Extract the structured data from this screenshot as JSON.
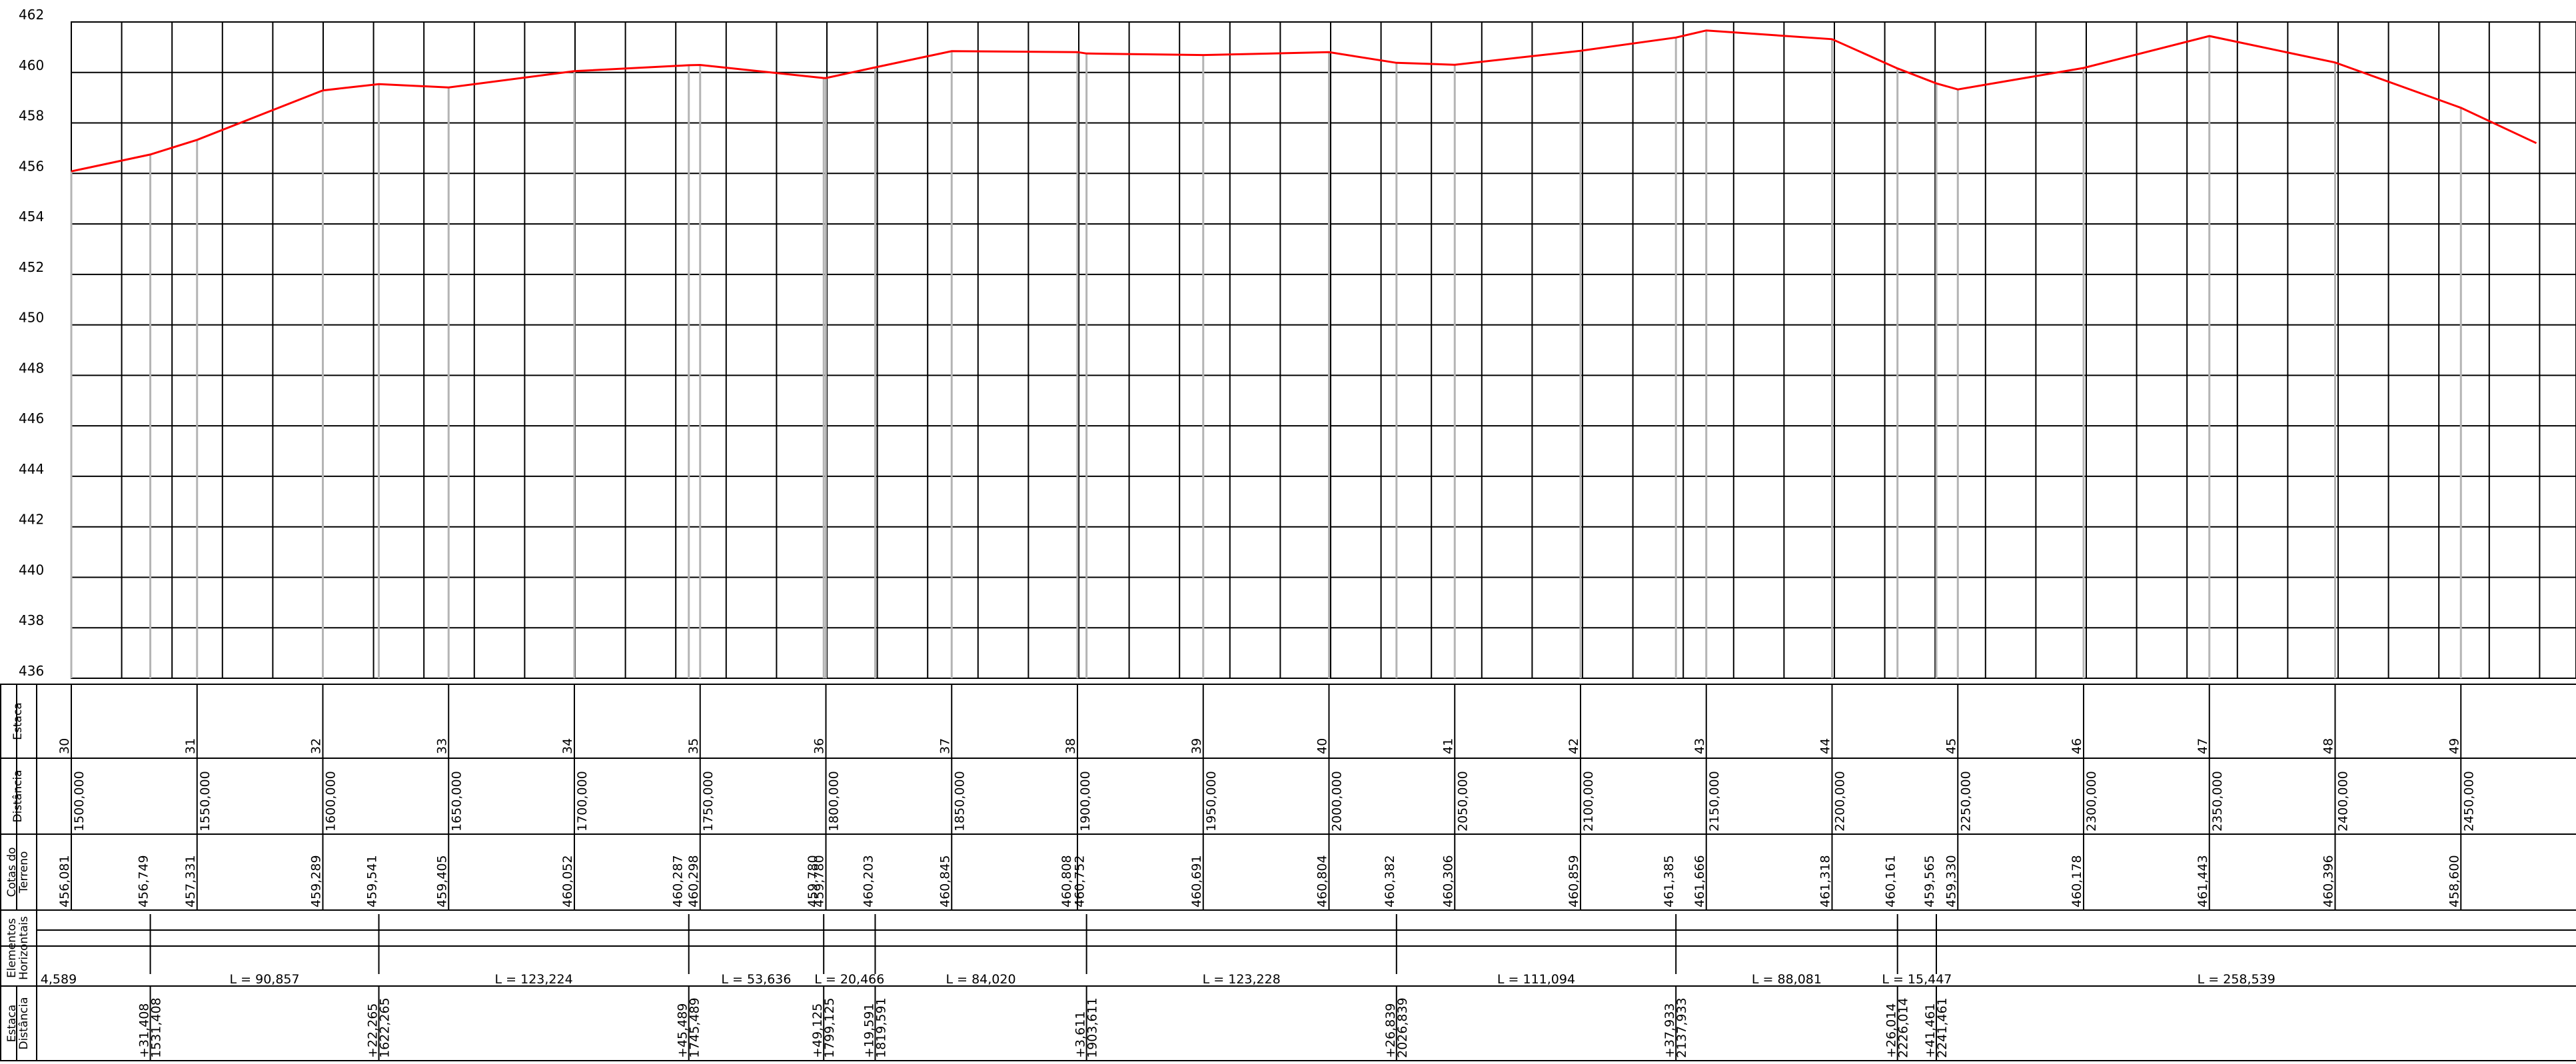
{
  "chart_data": {
    "type": "line",
    "y_ticks": [
      "462",
      "460",
      "458",
      "456",
      "454",
      "452",
      "450",
      "448",
      "446",
      "444",
      "442",
      "440",
      "438",
      "436"
    ],
    "ylim": [
      436,
      462
    ],
    "xlim": [
      1480,
      2480
    ],
    "grid": true,
    "series": [
      {
        "color": "#ff0000",
        "points": [
          [
            1500,
            456.081
          ],
          [
            1531.408,
            456.749
          ],
          [
            1550,
            457.331
          ],
          [
            1600,
            459.289
          ],
          [
            1622.265,
            459.541
          ],
          [
            1650,
            459.405
          ],
          [
            1700,
            460.052
          ],
          [
            1745.489,
            460.287
          ],
          [
            1750,
            460.298
          ],
          [
            1799.125,
            459.78
          ],
          [
            1800,
            459.78
          ],
          [
            1819.591,
            460.203
          ],
          [
            1850,
            460.845
          ],
          [
            1900,
            460.808
          ],
          [
            1903.611,
            460.752
          ],
          [
            1950,
            460.691
          ],
          [
            2000,
            460.804
          ],
          [
            2026.839,
            460.382
          ],
          [
            2050,
            460.306
          ],
          [
            2100,
            460.859
          ],
          [
            2137.933,
            461.385
          ],
          [
            2150,
            461.666
          ],
          [
            2200,
            461.318
          ],
          [
            2226.014,
            460.161
          ],
          [
            2241.461,
            459.565
          ],
          [
            2250,
            459.33
          ],
          [
            2300,
            460.178
          ],
          [
            2350,
            461.443
          ],
          [
            2400,
            460.396
          ],
          [
            2450,
            458.6
          ],
          [
            2480,
            457.2
          ]
        ]
      }
    ],
    "row_titles": [
      {
        "lines": [
          "Estaca"
        ]
      },
      {
        "lines": [
          "Distância"
        ]
      },
      {
        "lines": [
          "Cotas do",
          "Terreno"
        ]
      },
      {
        "lines": [
          "Elementos",
          "Horizontais"
        ]
      },
      {
        "lines": [
          "Estaca",
          "Distância"
        ]
      }
    ],
    "stations": [
      {
        "estaca": "30",
        "distancia": "1500,000"
      },
      {
        "estaca": "31",
        "distancia": "1550,000"
      },
      {
        "estaca": "32",
        "distancia": "1600,000"
      },
      {
        "estaca": "33",
        "distancia": "1650,000"
      },
      {
        "estaca": "34",
        "distancia": "1700,000"
      },
      {
        "estaca": "35",
        "distancia": "1750,000"
      },
      {
        "estaca": "36",
        "distancia": "1800,000"
      },
      {
        "estaca": "37",
        "distancia": "1850,000"
      },
      {
        "estaca": "38",
        "distancia": "1900,000"
      },
      {
        "estaca": "39",
        "distancia": "1950,000"
      },
      {
        "estaca": "40",
        "distancia": "2000,000"
      },
      {
        "estaca": "41",
        "distancia": "2050,000"
      },
      {
        "estaca": "42",
        "distancia": "2100,000"
      },
      {
        "estaca": "43",
        "distancia": "2150,000"
      },
      {
        "estaca": "44",
        "distancia": "2200,000"
      },
      {
        "estaca": "45",
        "distancia": "2250,000"
      },
      {
        "estaca": "46",
        "distancia": "2300,000"
      },
      {
        "estaca": "47",
        "distancia": "2350,000"
      },
      {
        "estaca": "48",
        "distancia": "2400,000"
      },
      {
        "estaca": "49",
        "distancia": "2450,000"
      }
    ],
    "cotas_terreno": [
      {
        "d": 1500,
        "text": "456,081"
      },
      {
        "d": 1531.408,
        "text": "456,749"
      },
      {
        "d": 1550,
        "text": "457,331"
      },
      {
        "d": 1600,
        "text": "459,289"
      },
      {
        "d": 1622.265,
        "text": "459,541"
      },
      {
        "d": 1650,
        "text": "459,405"
      },
      {
        "d": 1700,
        "text": "460,052"
      },
      {
        "d": 1745.489,
        "text": "460,287"
      },
      {
        "d": 1750,
        "text": "460,298"
      },
      {
        "d": 1799.125,
        "text": "459,780"
      },
      {
        "d": 1800,
        "text": "459,780"
      },
      {
        "d": 1819.591,
        "text": "460,203"
      },
      {
        "d": 1850,
        "text": "460,845"
      },
      {
        "d": 1900,
        "text": "460,808"
      },
      {
        "d": 1903.611,
        "text": "460,752"
      },
      {
        "d": 1950,
        "text": "460,691"
      },
      {
        "d": 2000,
        "text": "460,804"
      },
      {
        "d": 2026.839,
        "text": "460,382"
      },
      {
        "d": 2050,
        "text": "460,306"
      },
      {
        "d": 2100,
        "text": "460,859"
      },
      {
        "d": 2137.933,
        "text": "461,385"
      },
      {
        "d": 2150,
        "text": "461,666"
      },
      {
        "d": 2200,
        "text": "461,318"
      },
      {
        "d": 2226.014,
        "text": "460,161"
      },
      {
        "d": 2241.461,
        "text": "459,565"
      },
      {
        "d": 2250,
        "text": "459,330"
      },
      {
        "d": 2300,
        "text": "460,178"
      },
      {
        "d": 2350,
        "text": "461,443"
      },
      {
        "d": 2400,
        "text": "460,396"
      },
      {
        "d": 2450,
        "text": "458,600"
      }
    ],
    "elementos_horizontais": [
      {
        "start": 1480,
        "end": 1531.408,
        "label": "4,589"
      },
      {
        "start": 1531.408,
        "end": 1622.265,
        "label": "L = 90,857"
      },
      {
        "start": 1622.265,
        "end": 1745.489,
        "label": "L = 123,224"
      },
      {
        "start": 1745.489,
        "end": 1799.125,
        "label": "L = 53,636"
      },
      {
        "start": 1799.125,
        "end": 1819.591,
        "label": "L = 20,466"
      },
      {
        "start": 1819.591,
        "end": 1903.611,
        "label": "L = 84,020"
      },
      {
        "start": 1903.611,
        "end": 2026.839,
        "label": "L = 123,228"
      },
      {
        "start": 2026.839,
        "end": 2137.933,
        "label": "L = 111,094"
      },
      {
        "start": 2137.933,
        "end": 2226.014,
        "label": "L = 88,081"
      },
      {
        "start": 2226.014,
        "end": 2241.461,
        "label": "L = 15,447"
      },
      {
        "start": 2241.461,
        "end": 2480,
        "label": "L = 258,539"
      }
    ],
    "pontos_notaveis": [
      {
        "d": 1531.408,
        "estaca": "+31,408",
        "distancia": "1531,408"
      },
      {
        "d": 1622.265,
        "estaca": "+22,265",
        "distancia": "1622,265"
      },
      {
        "d": 1745.489,
        "estaca": "+45,489",
        "distancia": "1745,489"
      },
      {
        "d": 1799.125,
        "estaca": "+49,125",
        "distancia": "1799,125"
      },
      {
        "d": 1819.591,
        "estaca": "+19,591",
        "distancia": "1819,591"
      },
      {
        "d": 1903.611,
        "estaca": "+3,611",
        "distancia": "1903,611"
      },
      {
        "d": 2026.839,
        "estaca": "+26,839",
        "distancia": "2026,839"
      },
      {
        "d": 2137.933,
        "estaca": "+37,933",
        "distancia": "2137,933"
      },
      {
        "d": 2226.014,
        "estaca": "+26,014",
        "distancia": "2226,014"
      },
      {
        "d": 2241.461,
        "estaca": "+41,461",
        "distancia": "2241,461"
      }
    ]
  }
}
